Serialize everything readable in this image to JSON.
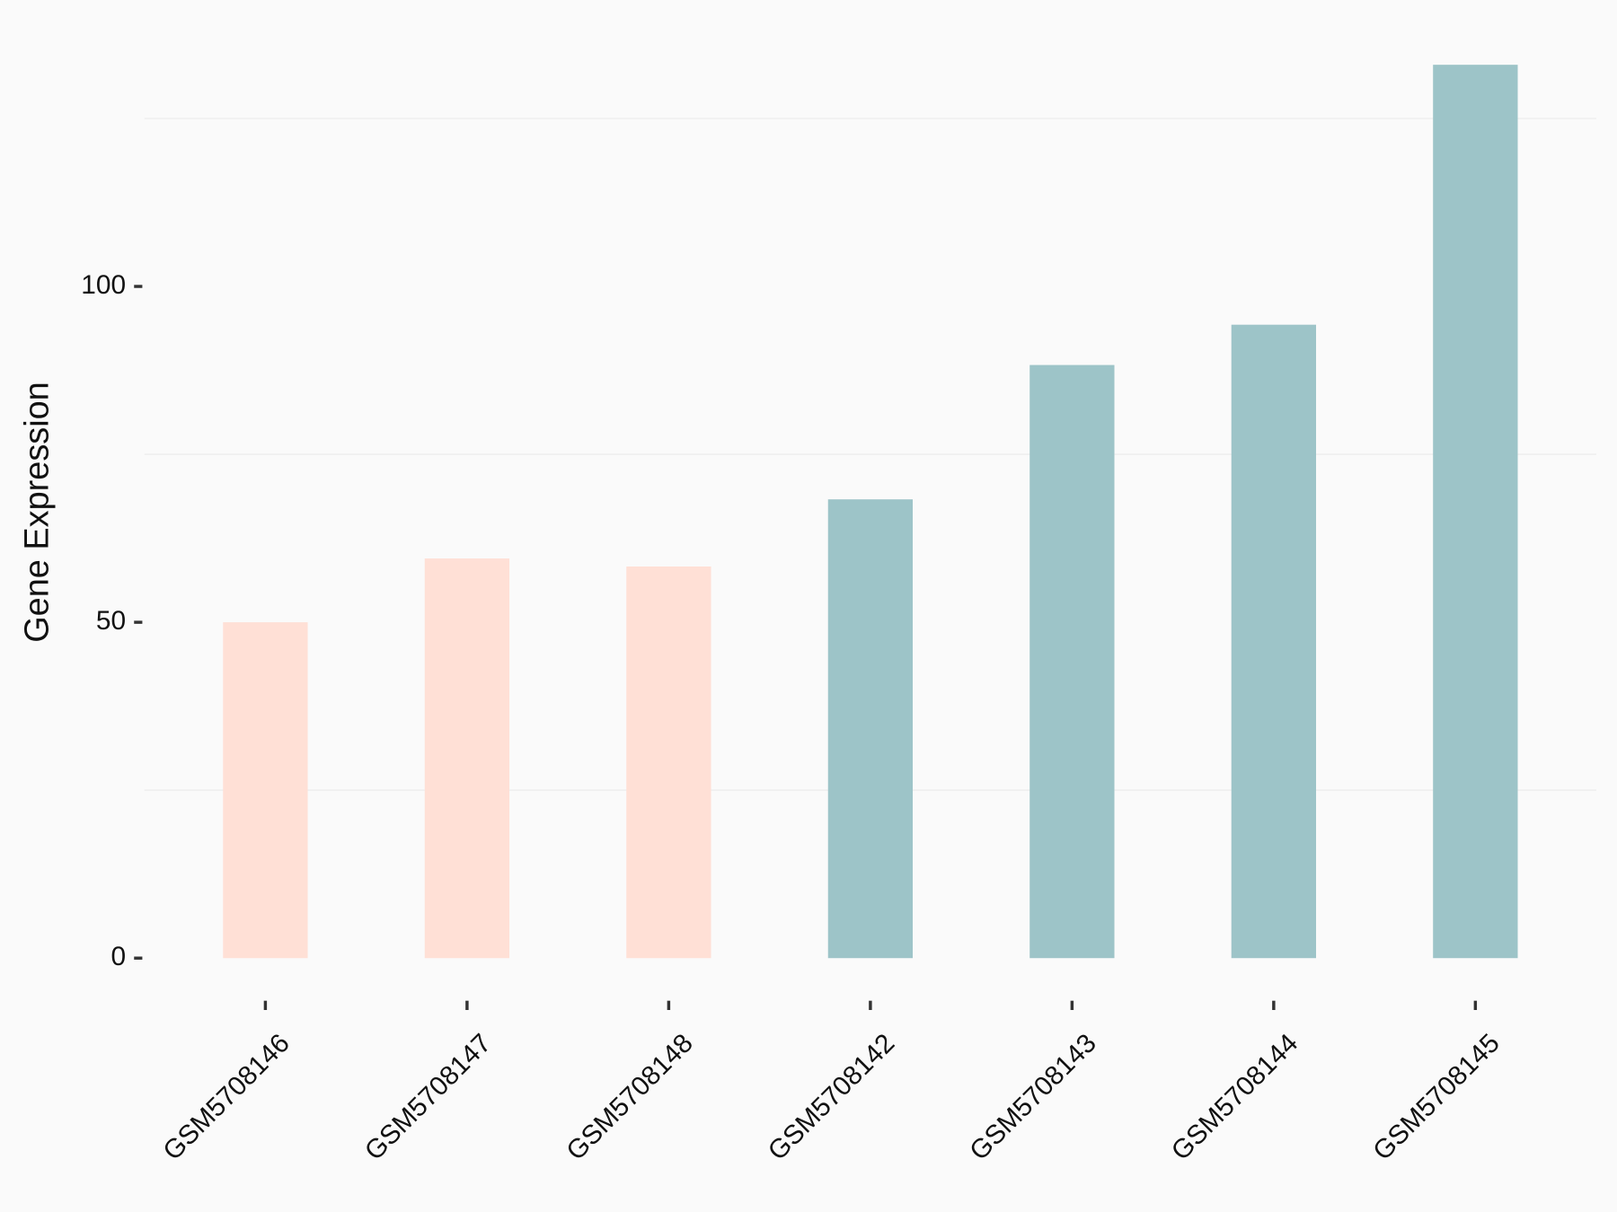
{
  "chart_data": {
    "type": "bar",
    "y_label": "Gene Expression",
    "categories": [
      "GSM5708146",
      "GSM5708147",
      "GSM5708148",
      "GSM5708142",
      "GSM5708143",
      "GSM5708144",
      "GSM5708145"
    ],
    "values": [
      50.0,
      59.5,
      58.3,
      68.3,
      88.3,
      94.3,
      133.0
    ],
    "colors": [
      "#FFE0D6",
      "#FFE0D6",
      "#FFE0D6",
      "#9DC4C8",
      "#9DC4C8",
      "#9DC4C8",
      "#9DC4C8"
    ],
    "ylim": [
      -6.65,
      139.65
    ],
    "yticks": [
      0,
      50,
      100
    ],
    "minor_grid": [
      25,
      75,
      125
    ]
  }
}
